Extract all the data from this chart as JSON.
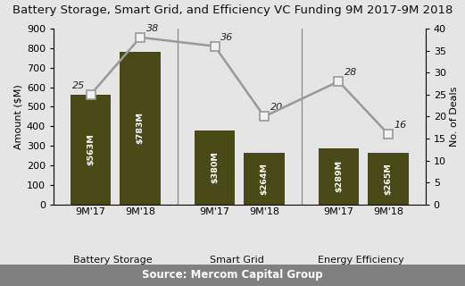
{
  "title": "Battery Storage, Smart Grid, and Efficiency VC Funding 9M 2017-9M 2018",
  "categories": [
    "Battery Storage",
    "Smart Grid",
    "Energy Efficiency"
  ],
  "x_labels": [
    "9M'17",
    "9M'18",
    "9M'17",
    "9M'18",
    "9M'17",
    "9M'18"
  ],
  "bar_values": [
    563,
    783,
    380,
    264,
    289,
    265
  ],
  "bar_labels": [
    "$563M",
    "$783M",
    "$380M",
    "$264M",
    "$289M",
    "$265M"
  ],
  "deal_values": [
    25,
    38,
    36,
    20,
    28,
    16
  ],
  "bar_color": "#4a4a18",
  "line_color": "#999999",
  "marker_facecolor": "#f0f0f0",
  "marker_edgecolor": "#999999",
  "ylabel_left": "Amount ($M)",
  "ylabel_right": "No. of Deals",
  "ylim_left": [
    0,
    900
  ],
  "ylim_right": [
    0,
    40
  ],
  "yticks_left": [
    0,
    100,
    200,
    300,
    400,
    500,
    600,
    700,
    800,
    900
  ],
  "yticks_right": [
    0,
    5,
    10,
    15,
    20,
    25,
    30,
    35,
    40
  ],
  "source_text": "Source: Mercom Capital Group",
  "bg_color": "#e5e5e5",
  "source_bg_color": "#808080",
  "source_text_color": "#ffffff",
  "divider_color": "#888888",
  "title_fontsize": 9.5,
  "tick_fontsize": 8,
  "axis_label_fontsize": 8,
  "bar_text_fontsize": 6.8,
  "deal_fontsize": 8,
  "category_fontsize": 8
}
